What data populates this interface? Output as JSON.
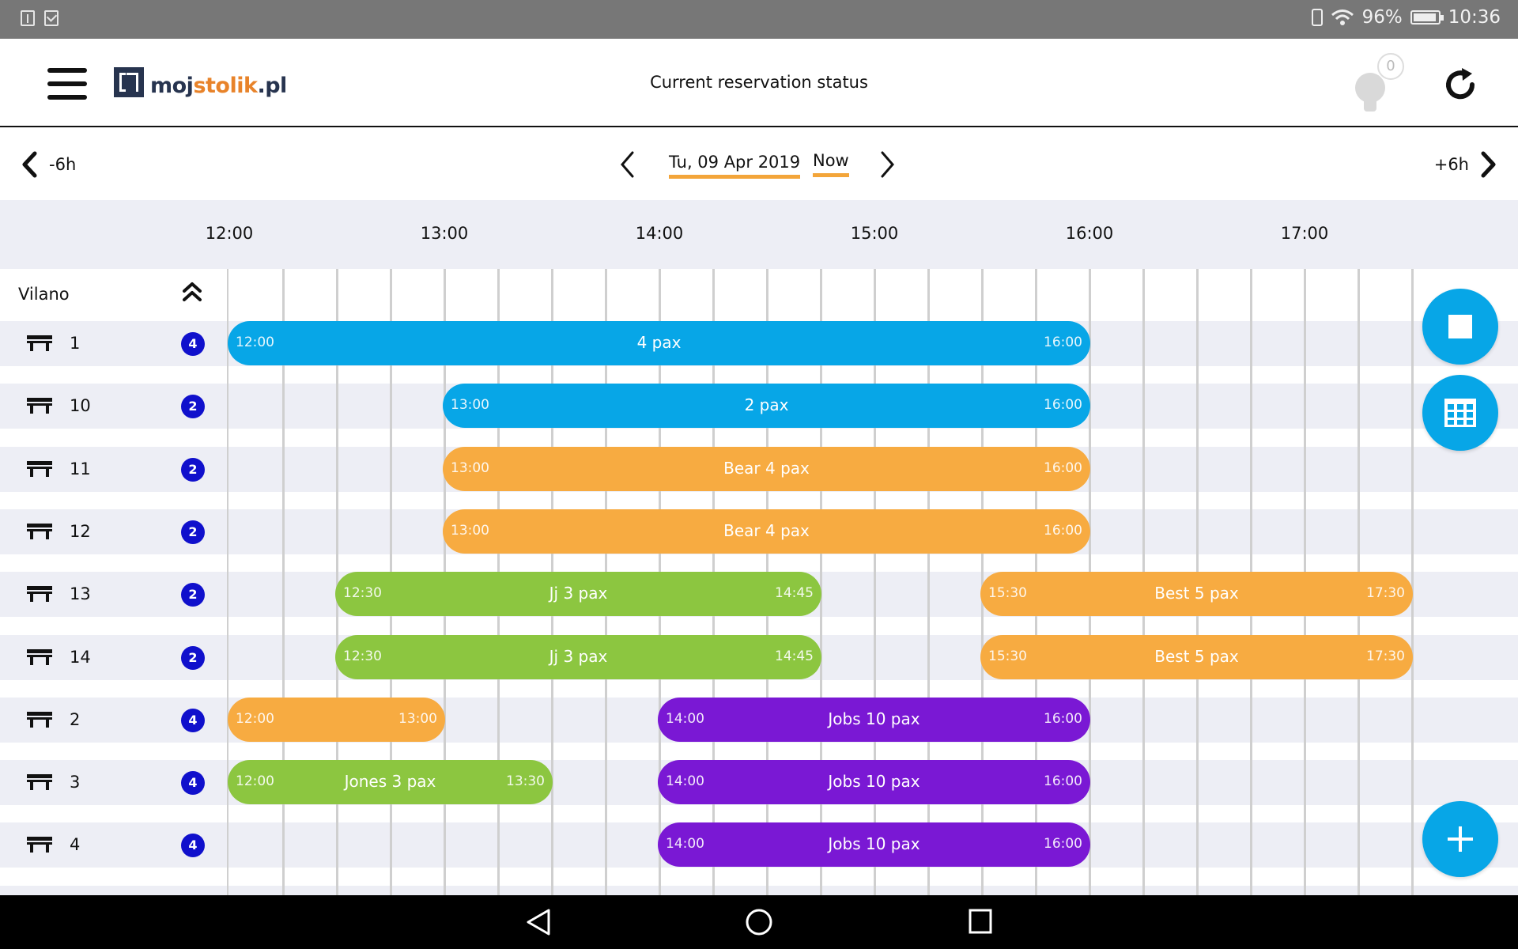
{
  "statusbar": {
    "battery": "96%",
    "time": "10:36"
  },
  "header": {
    "logo_part1": "moj",
    "logo_part2": "stolik",
    "logo_part3": ".pl",
    "title": "Current reservation status",
    "notifications_count": "0"
  },
  "nav": {
    "prev_label": "-6h",
    "next_label": "+6h",
    "date": "Tu, 09 Apr 2019",
    "now": "Now"
  },
  "timeline": {
    "ticks": [
      "12:00",
      "13:00",
      "14:00",
      "15:00",
      "16:00",
      "17:00"
    ],
    "group": "Vilano"
  },
  "tables": [
    {
      "name": "1",
      "seats": "4",
      "reservations": [
        {
          "start": "12:00",
          "end": "16:00",
          "label": "4  pax",
          "color": "#07a6e7"
        }
      ]
    },
    {
      "name": "10",
      "seats": "2",
      "reservations": [
        {
          "start": "13:00",
          "end": "16:00",
          "label": "2  pax",
          "color": "#07a6e7"
        }
      ]
    },
    {
      "name": "11",
      "seats": "2",
      "reservations": [
        {
          "start": "13:00",
          "end": "16:00",
          "label": "Bear 4  pax",
          "color": "#f7ab41"
        }
      ]
    },
    {
      "name": "12",
      "seats": "2",
      "reservations": [
        {
          "start": "13:00",
          "end": "16:00",
          "label": "Bear 4  pax",
          "color": "#f7ab41"
        }
      ]
    },
    {
      "name": "13",
      "seats": "2",
      "reservations": [
        {
          "start": "12:30",
          "end": "14:45",
          "label": "Jj 3  pax",
          "color": "#8cc640"
        },
        {
          "start": "15:30",
          "end": "17:30",
          "label": "Best 5  pax",
          "color": "#f7ab41"
        }
      ]
    },
    {
      "name": "14",
      "seats": "2",
      "reservations": [
        {
          "start": "12:30",
          "end": "14:45",
          "label": "Jj 3  pax",
          "color": "#8cc640"
        },
        {
          "start": "15:30",
          "end": "17:30",
          "label": "Best 5  pax",
          "color": "#f7ab41"
        }
      ]
    },
    {
      "name": "2",
      "seats": "4",
      "reservations": [
        {
          "start": "12:00",
          "end": "13:00",
          "label": "",
          "color": "#f7ab41"
        },
        {
          "start": "14:00",
          "end": "16:00",
          "label": "Jobs 10  pax",
          "color": "#7a18d4"
        }
      ]
    },
    {
      "name": "3",
      "seats": "4",
      "reservations": [
        {
          "start": "12:00",
          "end": "13:30",
          "label": "Jones 3  pax",
          "color": "#8cc640"
        },
        {
          "start": "14:00",
          "end": "16:00",
          "label": "Jobs 10  pax",
          "color": "#7a18d4"
        }
      ]
    },
    {
      "name": "4",
      "seats": "4",
      "reservations": [
        {
          "start": "14:00",
          "end": "16:00",
          "label": "Jobs 10  pax",
          "color": "#7a18d4"
        }
      ]
    }
  ],
  "colors": {
    "accent": "#f3a53a",
    "fab": "#07a6e7",
    "badge": "#1010cc",
    "row_alt": "#edeef5"
  }
}
